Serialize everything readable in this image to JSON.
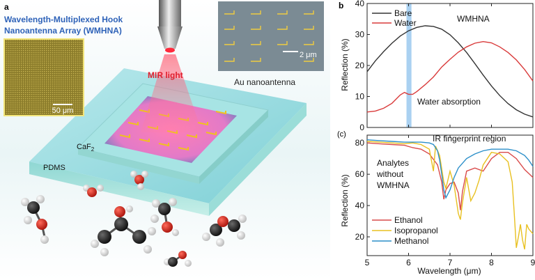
{
  "figure": {
    "panel_a": {
      "label": "a",
      "title_line1": "Wavelength-Multiplexed Hook",
      "title_line2": "Nanoantenna Array (WMHNA)",
      "inset_left_scale": "50 μm",
      "inset_right_scale": "2 μm",
      "inset_right_caption": "Au nanoantenna",
      "mir_label": "MIR light",
      "caf2_label": "CaF",
      "caf2_subscript": "2",
      "pdms_label": "PDMS"
    },
    "panel_b": {
      "label": "b",
      "ylabel": "Reflection (%)",
      "annotation_top": "WMHNA",
      "annotation_water": "Water absorption"
    },
    "panel_c": {
      "label": "(c)",
      "ylabel": "Reflection (%)",
      "xlabel": "Wavelength (μm)",
      "annotation_region": "IR fingerprint region",
      "annotation_analytes_1": "Analytes",
      "annotation_analytes_2": "without",
      "annotation_analytes_3": "WMHNA"
    },
    "colors": {
      "bare": "#333333",
      "water": "#d93a3a",
      "ethanol": "#d94a4a",
      "isopropanol": "#e8c020",
      "methanol": "#2b8fc9",
      "highlight": "#8ec1ec"
    }
  },
  "chart_data": [
    {
      "type": "line",
      "panel": "b",
      "xlim": [
        5,
        9
      ],
      "ylim": [
        0,
        40
      ],
      "yticks": [
        0,
        10,
        20,
        30,
        40
      ],
      "highlight_band_x": [
        5.95,
        6.07
      ],
      "legend_position": "top-left",
      "series": [
        {
          "name": "Bare",
          "color": "#333333",
          "x": [
            5.0,
            5.2,
            5.4,
            5.6,
            5.8,
            6.0,
            6.2,
            6.4,
            6.6,
            6.8,
            7.0,
            7.2,
            7.4,
            7.6,
            7.8,
            8.0,
            8.2,
            8.4,
            8.6,
            8.8,
            9.0
          ],
          "y": [
            18,
            21.5,
            24.5,
            27.2,
            29.5,
            31.2,
            32.3,
            32.8,
            32.6,
            31.7,
            29.9,
            27.3,
            24.2,
            20.6,
            16.9,
            13.4,
            10.3,
            7.7,
            5.7,
            4.3,
            3.4
          ]
        },
        {
          "name": "Water",
          "color": "#d93a3a",
          "x": [
            5.0,
            5.2,
            5.4,
            5.6,
            5.8,
            5.9,
            6.0,
            6.1,
            6.2,
            6.4,
            6.6,
            6.8,
            7.0,
            7.2,
            7.4,
            7.6,
            7.8,
            8.0,
            8.2,
            8.4,
            8.6,
            8.8,
            9.0
          ],
          "y": [
            5,
            5.3,
            6.2,
            7.8,
            10.5,
            11.3,
            10.7,
            10.7,
            11.6,
            13.8,
            16.3,
            19.5,
            22,
            24.3,
            26,
            27.2,
            27.7,
            27.3,
            26,
            24.2,
            21.8,
            18.7,
            15
          ]
        }
      ]
    },
    {
      "type": "line",
      "panel": "c",
      "xlim": [
        5,
        9
      ],
      "ylim": [
        8,
        85
      ],
      "yticks": [
        20,
        40,
        60,
        80
      ],
      "xticks": [
        5,
        6,
        7,
        8,
        9
      ],
      "legend_position": "bottom-left",
      "series": [
        {
          "name": "Ethanol",
          "color": "#d94a4a",
          "x": [
            5.0,
            5.3,
            5.6,
            5.9,
            6.1,
            6.3,
            6.5,
            6.7,
            6.8,
            6.85,
            6.9,
            7.0,
            7.1,
            7.2,
            7.25,
            7.3,
            7.4,
            7.6,
            7.8,
            8.0,
            8.2,
            8.4,
            8.6,
            8.8,
            9.0
          ],
          "y": [
            80,
            79.5,
            79,
            78.5,
            77,
            76,
            73,
            66,
            55,
            44,
            50,
            54,
            55,
            48,
            37,
            49,
            62,
            64,
            62,
            70,
            74,
            74,
            70,
            63,
            58
          ]
        },
        {
          "name": "Isopropanol",
          "color": "#e8c020",
          "x": [
            5.0,
            5.3,
            5.6,
            5.9,
            6.1,
            6.3,
            6.5,
            6.6,
            6.65,
            6.75,
            6.85,
            6.9,
            7.0,
            7.1,
            7.2,
            7.25,
            7.3,
            7.4,
            7.5,
            7.6,
            7.7,
            7.8,
            8.0,
            8.2,
            8.4,
            8.5,
            8.55,
            8.6,
            8.65,
            8.7,
            8.75,
            8.8,
            8.85,
            8.9,
            9.0
          ],
          "y": [
            81,
            80.5,
            80,
            79.5,
            80,
            79,
            76,
            62,
            78,
            72,
            55,
            51,
            62,
            53,
            35,
            31,
            42,
            58,
            43,
            48,
            56,
            66,
            74,
            73,
            68,
            55,
            35,
            13,
            20,
            28,
            18,
            12,
            28,
            25,
            22
          ]
        },
        {
          "name": "Methanol",
          "color": "#2b8fc9",
          "x": [
            5.0,
            5.3,
            5.6,
            5.9,
            6.1,
            6.3,
            6.5,
            6.6,
            6.7,
            6.75,
            6.8,
            6.85,
            6.9,
            7.0,
            7.1,
            7.2,
            7.4,
            7.6,
            7.8,
            8.0,
            8.2,
            8.4,
            8.6,
            8.8,
            8.9,
            9.0
          ],
          "y": [
            82,
            81.5,
            81,
            80.5,
            80.5,
            80.5,
            80,
            79,
            75,
            69,
            60,
            50,
            45,
            50,
            58,
            64,
            70,
            73,
            75,
            76,
            76,
            76,
            75,
            72,
            69,
            65
          ]
        }
      ]
    }
  ]
}
